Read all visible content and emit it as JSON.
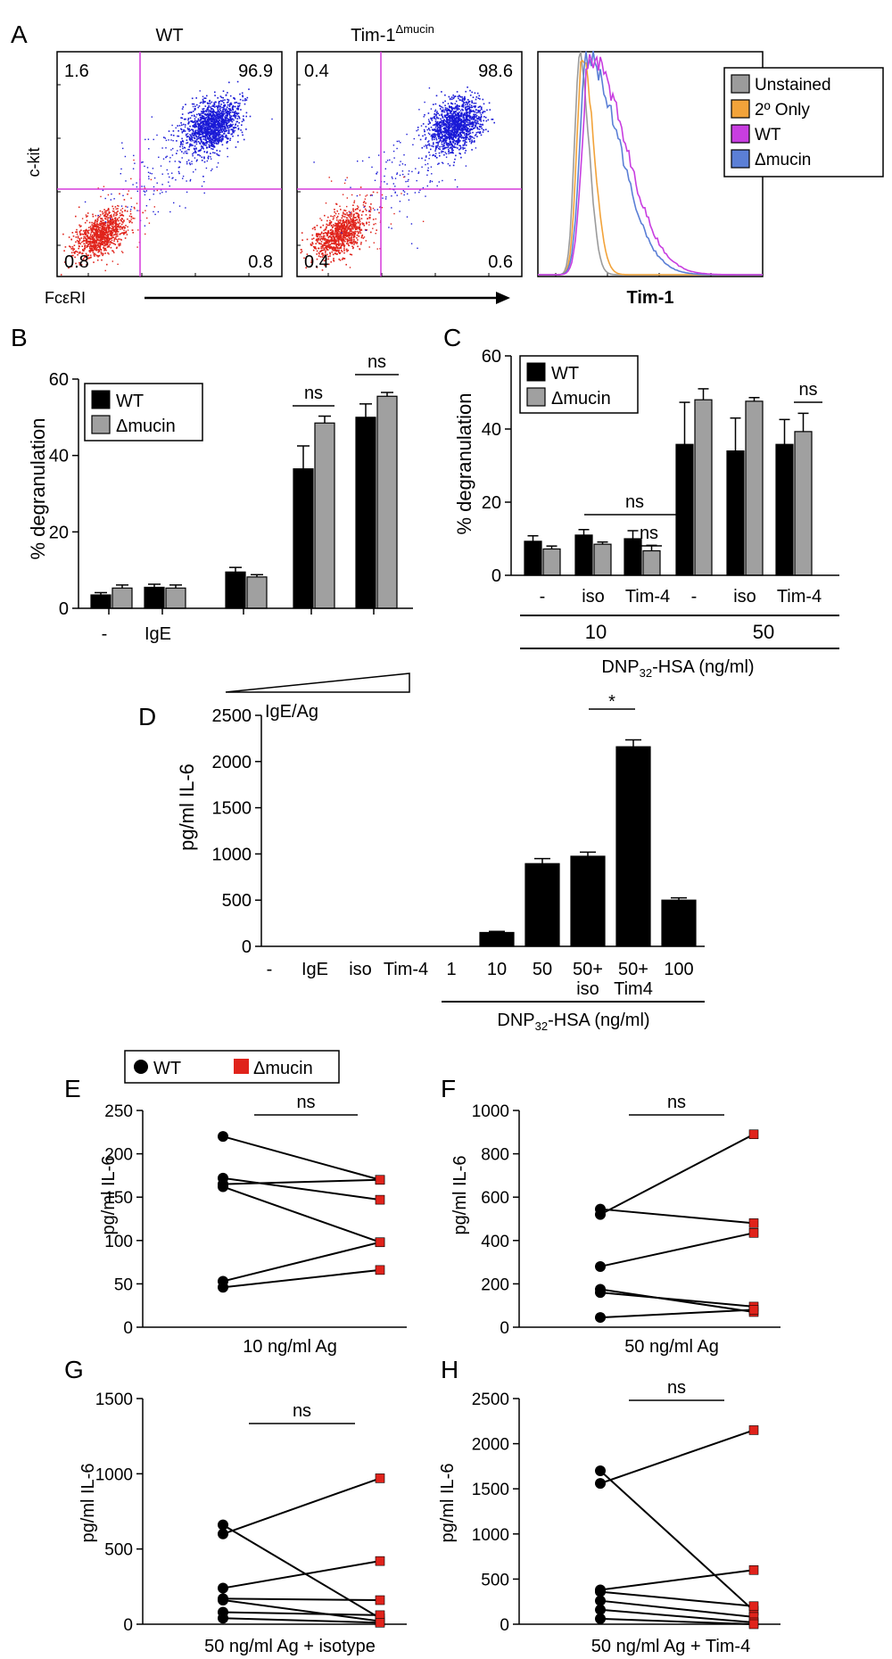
{
  "colors": {
    "wt_dot": "#1a1ad6",
    "ko_dot": "#e0231b",
    "gate": "#d63adb",
    "unstained": "#9b9b9b",
    "secondary": "#f2a33a",
    "wt_hist": "#c83ee0",
    "mucin_hist": "#5b7fd6",
    "wt_bar": "#000000",
    "mucin_bar": "#a0a0a0",
    "mucin_marker": "#e0231b"
  },
  "chart_data": [
    {
      "panel": "A",
      "type": "scatter",
      "title": "WT",
      "xlabel": "FcεRI",
      "ylabel": "c-kit",
      "quadrants": {
        "top_left": "1.6",
        "top_right": "96.9",
        "bottom_left": "0.8",
        "bottom_right": "0.8"
      }
    },
    {
      "panel": "A",
      "type": "scatter",
      "title": "Tim-1",
      "title_sup": "Δmucin",
      "quadrants": {
        "top_left": "0.4",
        "top_right": "98.6",
        "bottom_left": "0.4",
        "bottom_right": "0.6"
      }
    },
    {
      "panel": "A",
      "type": "line",
      "xlabel": "Tim-1",
      "legend": [
        "Unstained",
        "2º Only",
        "WT",
        "Δmucin"
      ],
      "legend_position": "top-right"
    },
    {
      "panel": "B",
      "type": "bar",
      "ylabel": "% degranulation",
      "ylim": [
        0,
        60
      ],
      "yticks": [
        0,
        20,
        40,
        60
      ],
      "categories": [
        "-",
        "IgE",
        "",
        "",
        ""
      ],
      "group_label": "IgE/Ag",
      "series": [
        {
          "name": "WT",
          "values": [
            3.5,
            5.5,
            9.5,
            36.5,
            50
          ],
          "errors": [
            0.6,
            0.8,
            1.2,
            6,
            3.5
          ]
        },
        {
          "name": "Δmucin",
          "values": [
            5.3,
            5.3,
            8.2,
            48.5,
            55.5
          ],
          "errors": [
            0.8,
            0.8,
            0.6,
            1.8,
            1
          ]
        }
      ],
      "annotations": [
        "ns",
        "ns"
      ]
    },
    {
      "panel": "C",
      "type": "bar",
      "ylabel": "% degranulation",
      "xlabel": "DNP32-HSA (ng/ml)",
      "ylim": [
        0,
        60
      ],
      "yticks": [
        0,
        20,
        40,
        60
      ],
      "categories": [
        "-",
        "iso",
        "Tim-4",
        "-",
        "iso",
        "Tim-4"
      ],
      "groups": [
        "10",
        "50"
      ],
      "series": [
        {
          "name": "WT",
          "values": [
            9.3,
            11,
            10,
            35.8,
            34,
            35.8
          ],
          "errors": [
            1.5,
            1.5,
            2.2,
            11.5,
            9,
            6.8
          ]
        },
        {
          "name": "Δmucin",
          "values": [
            7.2,
            8.5,
            6.7,
            48,
            47.6,
            39.3
          ],
          "errors": [
            0.8,
            0.6,
            1.5,
            3,
            1,
            5
          ]
        }
      ],
      "annotations": [
        "ns",
        "ns",
        "ns"
      ]
    },
    {
      "panel": "D",
      "type": "bar",
      "ylabel": "pg/ml IL-6",
      "xlabel": "DNP32-HSA (ng/ml)",
      "ylim": [
        0,
        2500
      ],
      "yticks": [
        0,
        500,
        1000,
        1500,
        2000,
        2500
      ],
      "categories": [
        "-",
        "IgE",
        "iso",
        "Tim-4",
        "1",
        "10",
        "50",
        "50+\niso",
        "50+\nTim4",
        "100"
      ],
      "values": [
        0,
        0,
        0,
        0,
        0,
        150,
        895,
        975,
        2160,
        500
      ],
      "errors": [
        0,
        0,
        0,
        0,
        0,
        12,
        55,
        45,
        75,
        25
      ],
      "annotations": [
        "*"
      ]
    },
    {
      "panel": "E",
      "type": "line",
      "ylabel": "pg/ml IL-6",
      "xlabel": "10 ng/ml Ag",
      "ylim": [
        0,
        250
      ],
      "yticks": [
        0,
        50,
        100,
        150,
        200,
        250
      ],
      "series": [
        {
          "name": "WT",
          "values": [
            220,
            172,
            165,
            162,
            53,
            46
          ]
        },
        {
          "name": "Δmucin",
          "values": [
            170,
            147,
            170,
            98,
            98,
            66
          ]
        }
      ],
      "annotations": [
        "ns"
      ]
    },
    {
      "panel": "F",
      "type": "line",
      "ylabel": "pg/ml IL-6",
      "xlabel": "50 ng/ml Ag",
      "ylim": [
        0,
        1000
      ],
      "yticks": [
        0,
        200,
        400,
        600,
        800,
        1000
      ],
      "series": [
        {
          "name": "WT",
          "values": [
            545,
            520,
            280,
            175,
            160,
            45
          ]
        },
        {
          "name": "Δmucin",
          "values": [
            480,
            890,
            435,
            70,
            95,
            80
          ]
        }
      ],
      "annotations": [
        "ns"
      ]
    },
    {
      "panel": "G",
      "type": "line",
      "ylabel": "pg/ml IL-6",
      "xlabel": "50 ng/ml Ag + isotype",
      "ylim": [
        0,
        1500
      ],
      "yticks": [
        0,
        500,
        1000,
        1500
      ],
      "series": [
        {
          "name": "WT",
          "values": [
            660,
            600,
            240,
            170,
            160,
            80,
            40
          ]
        },
        {
          "name": "Δmucin",
          "values": [
            40,
            970,
            420,
            160,
            20,
            60,
            10
          ]
        }
      ],
      "annotations": [
        "ns"
      ]
    },
    {
      "panel": "H",
      "type": "line",
      "ylabel": "pg/ml IL-6",
      "xlabel": "50 ng/ml Ag + Tim-4",
      "ylim": [
        0,
        2500
      ],
      "yticks": [
        0,
        500,
        1000,
        1500,
        2000,
        2500
      ],
      "series": [
        {
          "name": "WT",
          "values": [
            1700,
            1560,
            380,
            360,
            260,
            160,
            60
          ]
        },
        {
          "name": "Δmucin",
          "values": [
            150,
            2150,
            600,
            200,
            80,
            20,
            0
          ]
        }
      ],
      "annotations": [
        "ns"
      ]
    }
  ],
  "panel_letters": [
    "A",
    "B",
    "C",
    "D",
    "E",
    "F",
    "G",
    "H"
  ],
  "legend_EH": {
    "wt": "WT",
    "mucin": "Δmucin"
  },
  "panel_D_x_prefix": "DNP",
  "panel_D_x_sub": "32",
  "panel_D_x_suffix": "-HSA (ng/ml)"
}
